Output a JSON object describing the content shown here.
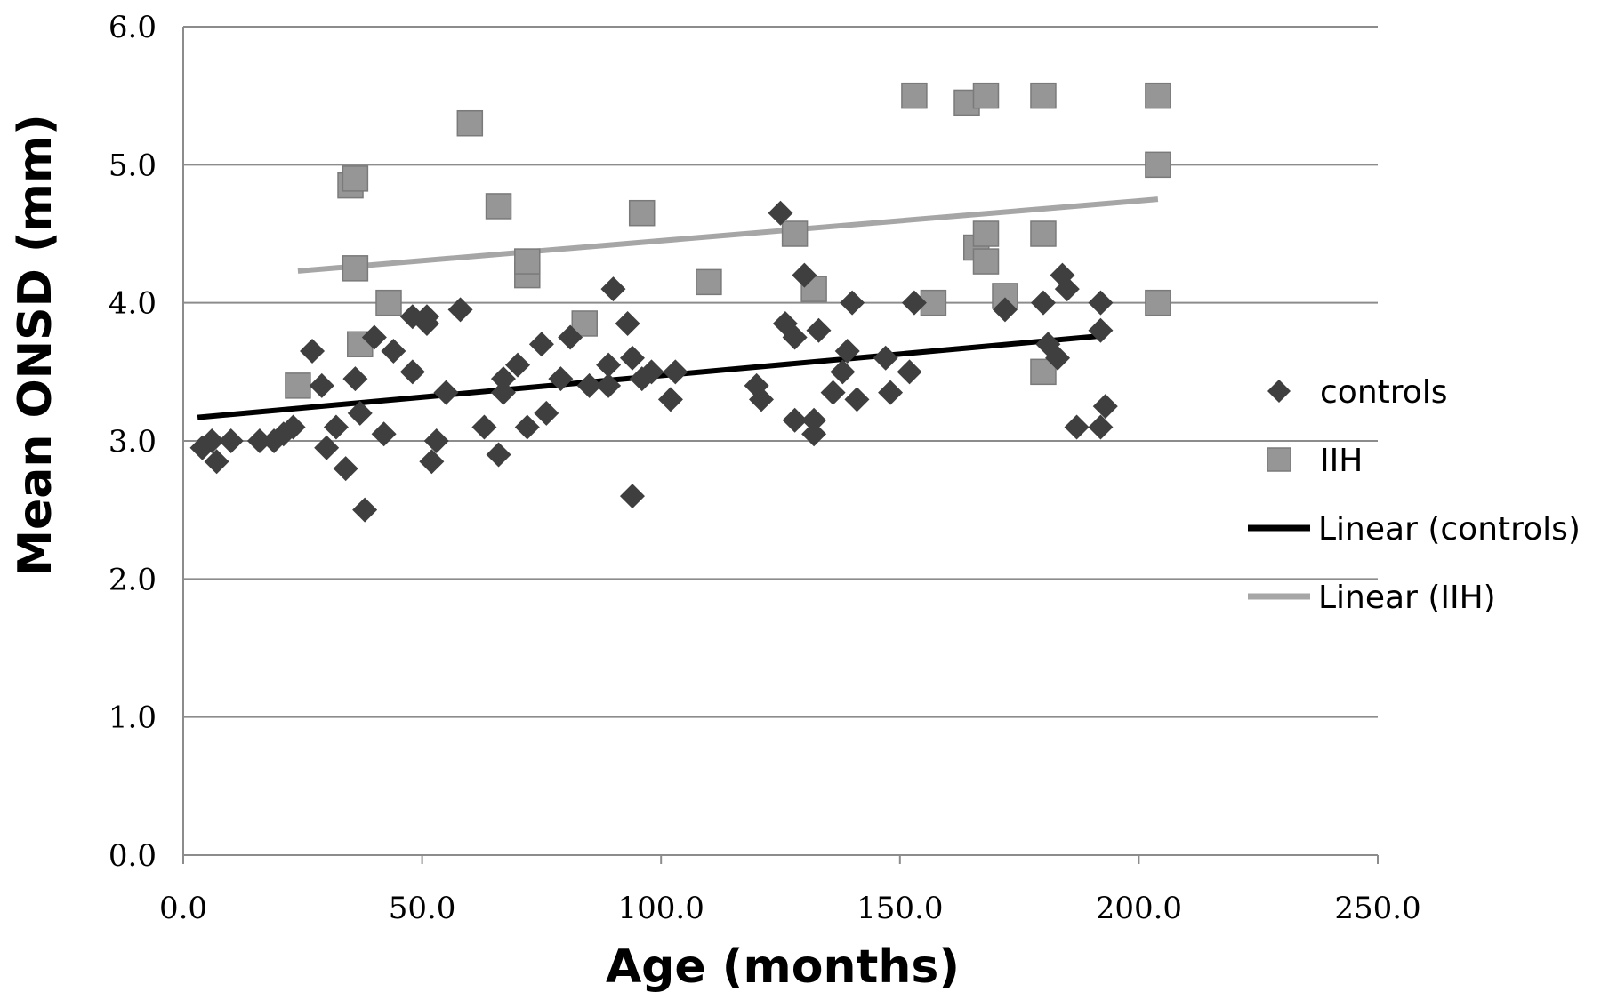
{
  "chart_data": {
    "type": "scatter",
    "xlabel": "Age (months)",
    "ylabel": "Mean ONSD (mm)",
    "xlim": [
      0,
      250
    ],
    "ylim": [
      0,
      6
    ],
    "xticks": [
      "0.0",
      "50.0",
      "100.0",
      "150.0",
      "200.0",
      "250.0"
    ],
    "yticks": [
      "0.0",
      "1.0",
      "2.0",
      "3.0",
      "4.0",
      "5.0",
      "6.0"
    ],
    "grid": "horizontal",
    "legend_position": "right",
    "series": [
      {
        "name": "controls",
        "marker": "diamond",
        "color": "#3f3f3f",
        "points": [
          [
            4,
            2.95
          ],
          [
            6,
            3.0
          ],
          [
            7,
            2.85
          ],
          [
            10,
            3.0
          ],
          [
            16,
            3.0
          ],
          [
            19,
            3.0
          ],
          [
            21,
            3.05
          ],
          [
            23,
            3.1
          ],
          [
            27,
            3.65
          ],
          [
            29,
            3.4
          ],
          [
            30,
            2.95
          ],
          [
            32,
            3.1
          ],
          [
            34,
            2.8
          ],
          [
            36,
            3.45
          ],
          [
            37,
            3.2
          ],
          [
            38,
            2.5
          ],
          [
            40,
            3.75
          ],
          [
            42,
            3.05
          ],
          [
            44,
            3.65
          ],
          [
            48,
            3.5
          ],
          [
            48,
            3.9
          ],
          [
            51,
            3.9
          ],
          [
            51,
            3.85
          ],
          [
            52,
            2.85
          ],
          [
            53,
            3.0
          ],
          [
            55,
            3.35
          ],
          [
            58,
            3.95
          ],
          [
            63,
            3.1
          ],
          [
            66,
            2.9
          ],
          [
            67,
            3.35
          ],
          [
            67,
            3.45
          ],
          [
            70,
            3.55
          ],
          [
            72,
            3.1
          ],
          [
            75,
            3.7
          ],
          [
            76,
            3.2
          ],
          [
            79,
            3.45
          ],
          [
            81,
            3.75
          ],
          [
            85,
            3.4
          ],
          [
            89,
            3.4
          ],
          [
            89,
            3.55
          ],
          [
            90,
            4.1
          ],
          [
            93,
            3.85
          ],
          [
            94,
            2.6
          ],
          [
            94,
            3.6
          ],
          [
            96,
            3.45
          ],
          [
            98,
            3.5
          ],
          [
            102,
            3.3
          ],
          [
            103,
            3.5
          ],
          [
            120,
            3.4
          ],
          [
            121,
            3.3
          ],
          [
            125,
            4.65
          ],
          [
            126,
            3.85
          ],
          [
            128,
            3.15
          ],
          [
            128,
            3.75
          ],
          [
            130,
            4.2
          ],
          [
            132,
            3.05
          ],
          [
            132,
            3.15
          ],
          [
            133,
            3.8
          ],
          [
            136,
            3.35
          ],
          [
            138,
            3.5
          ],
          [
            139,
            3.65
          ],
          [
            140,
            4.0
          ],
          [
            141,
            3.3
          ],
          [
            147,
            3.6
          ],
          [
            148,
            3.35
          ],
          [
            152,
            3.5
          ],
          [
            153,
            4.0
          ],
          [
            172,
            3.95
          ],
          [
            180,
            4.0
          ],
          [
            181,
            3.7
          ],
          [
            183,
            3.6
          ],
          [
            184,
            4.2
          ],
          [
            185,
            4.1
          ],
          [
            187,
            3.1
          ],
          [
            192,
            3.8
          ],
          [
            192,
            4.0
          ],
          [
            192,
            3.1
          ],
          [
            193,
            3.25
          ]
        ]
      },
      {
        "name": "IIH",
        "marker": "square",
        "color": "#969696",
        "points": [
          [
            24,
            3.4
          ],
          [
            35,
            4.85
          ],
          [
            36,
            4.9
          ],
          [
            36,
            4.25
          ],
          [
            37,
            3.7
          ],
          [
            43,
            4.0
          ],
          [
            60,
            5.3
          ],
          [
            66,
            4.7
          ],
          [
            72,
            4.2
          ],
          [
            72,
            4.3
          ],
          [
            84,
            3.85
          ],
          [
            96,
            4.65
          ],
          [
            110,
            4.15
          ],
          [
            128,
            4.5
          ],
          [
            132,
            4.1
          ],
          [
            153,
            5.5
          ],
          [
            157,
            4.0
          ],
          [
            164,
            5.45
          ],
          [
            166,
            4.4
          ],
          [
            168,
            5.5
          ],
          [
            168,
            4.5
          ],
          [
            168,
            4.3
          ],
          [
            172,
            4.05
          ],
          [
            180,
            5.5
          ],
          [
            180,
            4.5
          ],
          [
            180,
            3.5
          ],
          [
            204,
            5.5
          ],
          [
            204,
            5.0
          ],
          [
            204,
            4.0
          ]
        ]
      },
      {
        "name": "Linear (controls)",
        "type": "line",
        "color": "#000000",
        "points": [
          [
            3,
            3.17
          ],
          [
            192,
            3.76
          ]
        ]
      },
      {
        "name": "Linear (IIH)",
        "type": "line",
        "color": "#a6a6a6",
        "points": [
          [
            24,
            4.23
          ],
          [
            204,
            4.75
          ]
        ]
      }
    ]
  }
}
